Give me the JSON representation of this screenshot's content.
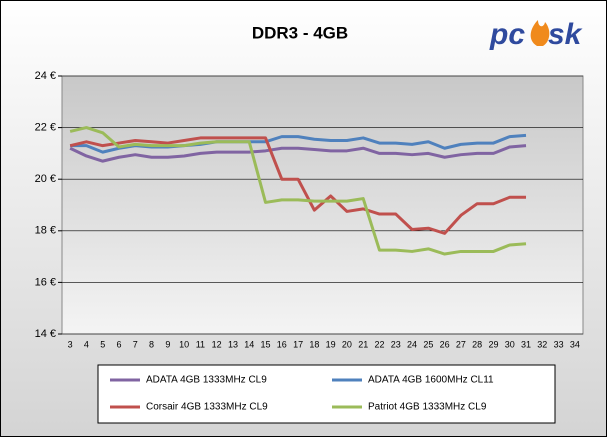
{
  "chart_data": {
    "type": "line",
    "title": "DDR3 - 4GB",
    "logo": [
      "pc",
      "sk"
    ],
    "categories": [
      3,
      4,
      5,
      6,
      7,
      8,
      9,
      10,
      11,
      12,
      13,
      14,
      15,
      16,
      17,
      18,
      19,
      20,
      21,
      22,
      23,
      24,
      25,
      26,
      27,
      28,
      29,
      30,
      31,
      32,
      33,
      34
    ],
    "series": [
      {
        "name": "ADATA 4GB 1333MHz CL9",
        "color": "#8064a2",
        "values": [
          21.2,
          20.9,
          20.7,
          20.85,
          20.95,
          20.85,
          20.85,
          20.9,
          21.0,
          21.05,
          21.05,
          21.05,
          21.1,
          21.2,
          21.2,
          21.15,
          21.1,
          21.1,
          21.2,
          21.0,
          21.0,
          20.95,
          21.0,
          20.85,
          20.95,
          21.0,
          21.0,
          21.25,
          21.3,
          null,
          null,
          null
        ]
      },
      {
        "name": "ADATA 4GB 1600MHz CL11",
        "color": "#4f81bd",
        "values": [
          21.3,
          21.3,
          21.05,
          21.2,
          21.3,
          21.25,
          21.25,
          21.3,
          21.35,
          21.45,
          21.45,
          21.45,
          21.45,
          21.65,
          21.65,
          21.55,
          21.5,
          21.5,
          21.6,
          21.4,
          21.4,
          21.35,
          21.45,
          21.2,
          21.35,
          21.4,
          21.4,
          21.65,
          21.7,
          null,
          null,
          null
        ]
      },
      {
        "name": "Corsair 4GB 1333MHz CL9",
        "color": "#c0504d",
        "values": [
          21.3,
          21.45,
          21.3,
          21.4,
          21.5,
          21.45,
          21.4,
          21.5,
          21.6,
          21.6,
          21.6,
          21.6,
          21.6,
          20.0,
          20.0,
          18.8,
          19.35,
          18.75,
          18.85,
          18.65,
          18.65,
          18.05,
          18.1,
          17.9,
          18.6,
          19.05,
          19.05,
          19.3,
          19.3,
          null,
          null,
          null
        ]
      },
      {
        "name": "Patriot 4GB 1333MHz CL9",
        "color": "#9bbb59",
        "values": [
          21.85,
          22.0,
          21.8,
          21.25,
          21.35,
          21.3,
          21.3,
          21.3,
          21.4,
          21.45,
          21.45,
          21.45,
          19.1,
          19.2,
          19.2,
          19.15,
          19.15,
          19.15,
          19.25,
          17.25,
          17.25,
          17.2,
          17.3,
          17.1,
          17.2,
          17.2,
          17.2,
          17.45,
          17.5,
          null,
          null,
          null
        ]
      }
    ],
    "ylim": [
      14,
      24
    ],
    "yticks": [
      {
        "value": 14,
        "label": "14 €"
      },
      {
        "value": 16,
        "label": "16 €"
      },
      {
        "value": 18,
        "label": "18 €"
      },
      {
        "value": 20,
        "label": "20 €"
      },
      {
        "value": 22,
        "label": "22 €"
      },
      {
        "value": 24,
        "label": "24 €"
      }
    ],
    "grid": true
  }
}
